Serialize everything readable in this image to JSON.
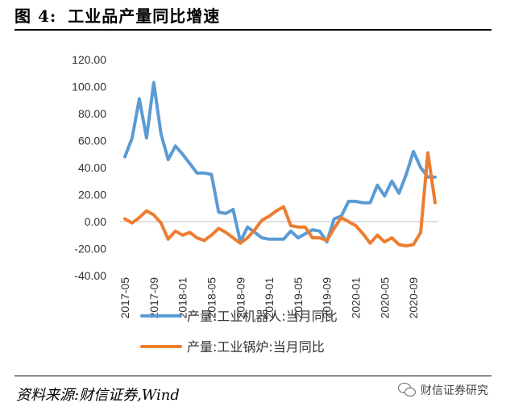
{
  "header": {
    "figure_label": "图 4:",
    "title": "工业品产量同比增速"
  },
  "footer": {
    "source": "资料来源:财信证券,Wind",
    "watermark": "财信证券研究",
    "watermark_icon": "wechat-icon"
  },
  "chart_data": {
    "type": "line",
    "title": "",
    "xlabel": "",
    "ylabel": "",
    "ylim": [
      -40,
      120
    ],
    "yticks": [
      "120.00",
      "100.00",
      "80.00",
      "60.00",
      "40.00",
      "20.00",
      "0.00",
      "-20.00",
      "-40.00"
    ],
    "xtick_labels": [
      "2017-05",
      "2017-09",
      "2018-01",
      "2018-05",
      "2018-09",
      "2019-01",
      "2019-05",
      "2019-09",
      "2020-01",
      "2020-05",
      "2020-09"
    ],
    "x": [
      "2017-05",
      "2017-06",
      "2017-07",
      "2017-08",
      "2017-09",
      "2017-10",
      "2017-11",
      "2017-12",
      "2018-01",
      "2018-02",
      "2018-03",
      "2018-04",
      "2018-05",
      "2018-06",
      "2018-07",
      "2018-08",
      "2018-09",
      "2018-10",
      "2018-11",
      "2018-12",
      "2019-01",
      "2019-02",
      "2019-03",
      "2019-04",
      "2019-05",
      "2019-06",
      "2019-07",
      "2019-08",
      "2019-09",
      "2019-10",
      "2019-11",
      "2019-12",
      "2020-01",
      "2020-02",
      "2020-03",
      "2020-04",
      "2020-05",
      "2020-06",
      "2020-07",
      "2020-08",
      "2020-09",
      "2020-10",
      "2020-11",
      "2020-12"
    ],
    "grid": false,
    "legend_position": "bottom",
    "series": [
      {
        "name": "产量:工业机器人:当月同比",
        "color": "#5B9BD5",
        "values": [
          48,
          62,
          91,
          62,
          103,
          65,
          46,
          56,
          50,
          43,
          36,
          36,
          35,
          7,
          6,
          9,
          -15,
          -4,
          -8,
          -12,
          -13,
          -13,
          -13,
          -7,
          -12,
          -9,
          -6,
          -7,
          -15,
          2,
          4,
          15,
          15,
          14,
          14,
          27,
          19,
          30,
          21,
          35,
          52,
          40,
          33,
          33
        ],
        "gaps": [
          28,
          31
        ]
      },
      {
        "name": "产量:工业锅炉:当月同比",
        "color": "#ED7D31",
        "values": [
          2,
          -1,
          3,
          8,
          5,
          -1,
          -13,
          -7,
          -10,
          -8,
          -12,
          -14,
          -10,
          -5,
          -8,
          -12,
          -16,
          -12,
          -6,
          1,
          4,
          8,
          11,
          -3,
          -4,
          -4,
          -12,
          -12,
          -14,
          -5,
          3,
          0,
          -3,
          -9,
          -16,
          -10,
          -15,
          -12,
          -17,
          -18,
          -17,
          -8,
          51,
          14
        ],
        "gaps": [
          31
        ]
      }
    ]
  }
}
